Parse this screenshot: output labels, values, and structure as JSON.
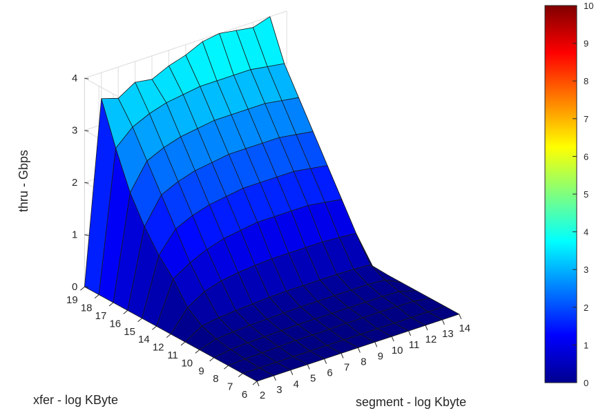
{
  "chart_data": {
    "type": "surface",
    "title": "",
    "xlabel": "segment - log Kbyte",
    "ylabel": "xfer - log KByte",
    "zlabel": "thru - Gbps",
    "x": [
      2,
      3,
      4,
      5,
      6,
      7,
      8,
      9,
      10,
      11,
      12,
      13,
      14
    ],
    "y": [
      6,
      7,
      8,
      9,
      10,
      11,
      12,
      14,
      15,
      16,
      17,
      18,
      19
    ],
    "zlim": [
      0,
      4
    ],
    "z_ticks": [
      0,
      1,
      2,
      3,
      4
    ],
    "grid": true,
    "colormap": "jet",
    "colorbar": {
      "range": [
        0,
        10
      ],
      "ticks": [
        0,
        1,
        2,
        3,
        4,
        5,
        6,
        7,
        8,
        9,
        10
      ],
      "placement": "right"
    },
    "z_rows_by_xfer": [
      [
        0,
        0,
        0,
        0,
        0,
        0,
        0,
        0,
        0,
        0,
        0,
        0,
        0
      ],
      [
        0,
        0,
        0,
        0,
        0,
        0,
        0,
        0,
        0,
        0,
        0,
        0,
        0
      ],
      [
        0,
        0.02,
        0.03,
        0.04,
        0.05,
        0.05,
        0.05,
        0.06,
        0.06,
        0.06,
        0.06,
        0.05,
        0
      ],
      [
        0,
        0.05,
        0.07,
        0.08,
        0.09,
        0.1,
        0.1,
        0.1,
        0.1,
        0.1,
        0.1,
        0.09,
        0
      ],
      [
        0,
        0.1,
        0.13,
        0.15,
        0.16,
        0.17,
        0.18,
        0.18,
        0.18,
        0.18,
        0.18,
        0.16,
        0
      ],
      [
        0,
        0.2,
        0.25,
        0.28,
        0.3,
        0.32,
        0.33,
        0.33,
        0.33,
        0.33,
        0.32,
        0.3,
        0
      ],
      [
        0,
        0.4,
        0.6,
        0.7,
        0.75,
        0.78,
        0.8,
        0.8,
        0.8,
        0.8,
        0.78,
        0.75,
        0
      ],
      [
        0,
        0.8,
        1.0,
        1.15,
        1.25,
        1.3,
        1.35,
        1.35,
        1.35,
        1.35,
        1.3,
        1.25,
        0
      ],
      [
        0,
        1.1,
        1.5,
        1.65,
        1.75,
        1.8,
        1.85,
        1.85,
        1.85,
        1.85,
        1.8,
        1.75,
        0
      ],
      [
        0,
        1.5,
        2.0,
        2.15,
        2.25,
        2.3,
        2.35,
        2.35,
        2.35,
        2.35,
        2.3,
        2.25,
        0
      ],
      [
        0,
        2.0,
        2.5,
        2.65,
        2.75,
        2.8,
        2.85,
        2.85,
        2.85,
        2.85,
        2.8,
        2.75,
        0
      ],
      [
        0,
        2.7,
        3.0,
        3.15,
        3.25,
        3.3,
        3.35,
        3.35,
        3.35,
        3.35,
        3.3,
        3.25,
        0
      ],
      [
        0,
        3.5,
        3.4,
        3.6,
        3.55,
        3.7,
        3.8,
        3.95,
        4.0,
        3.95,
        3.9,
        4.0,
        0
      ]
    ]
  }
}
